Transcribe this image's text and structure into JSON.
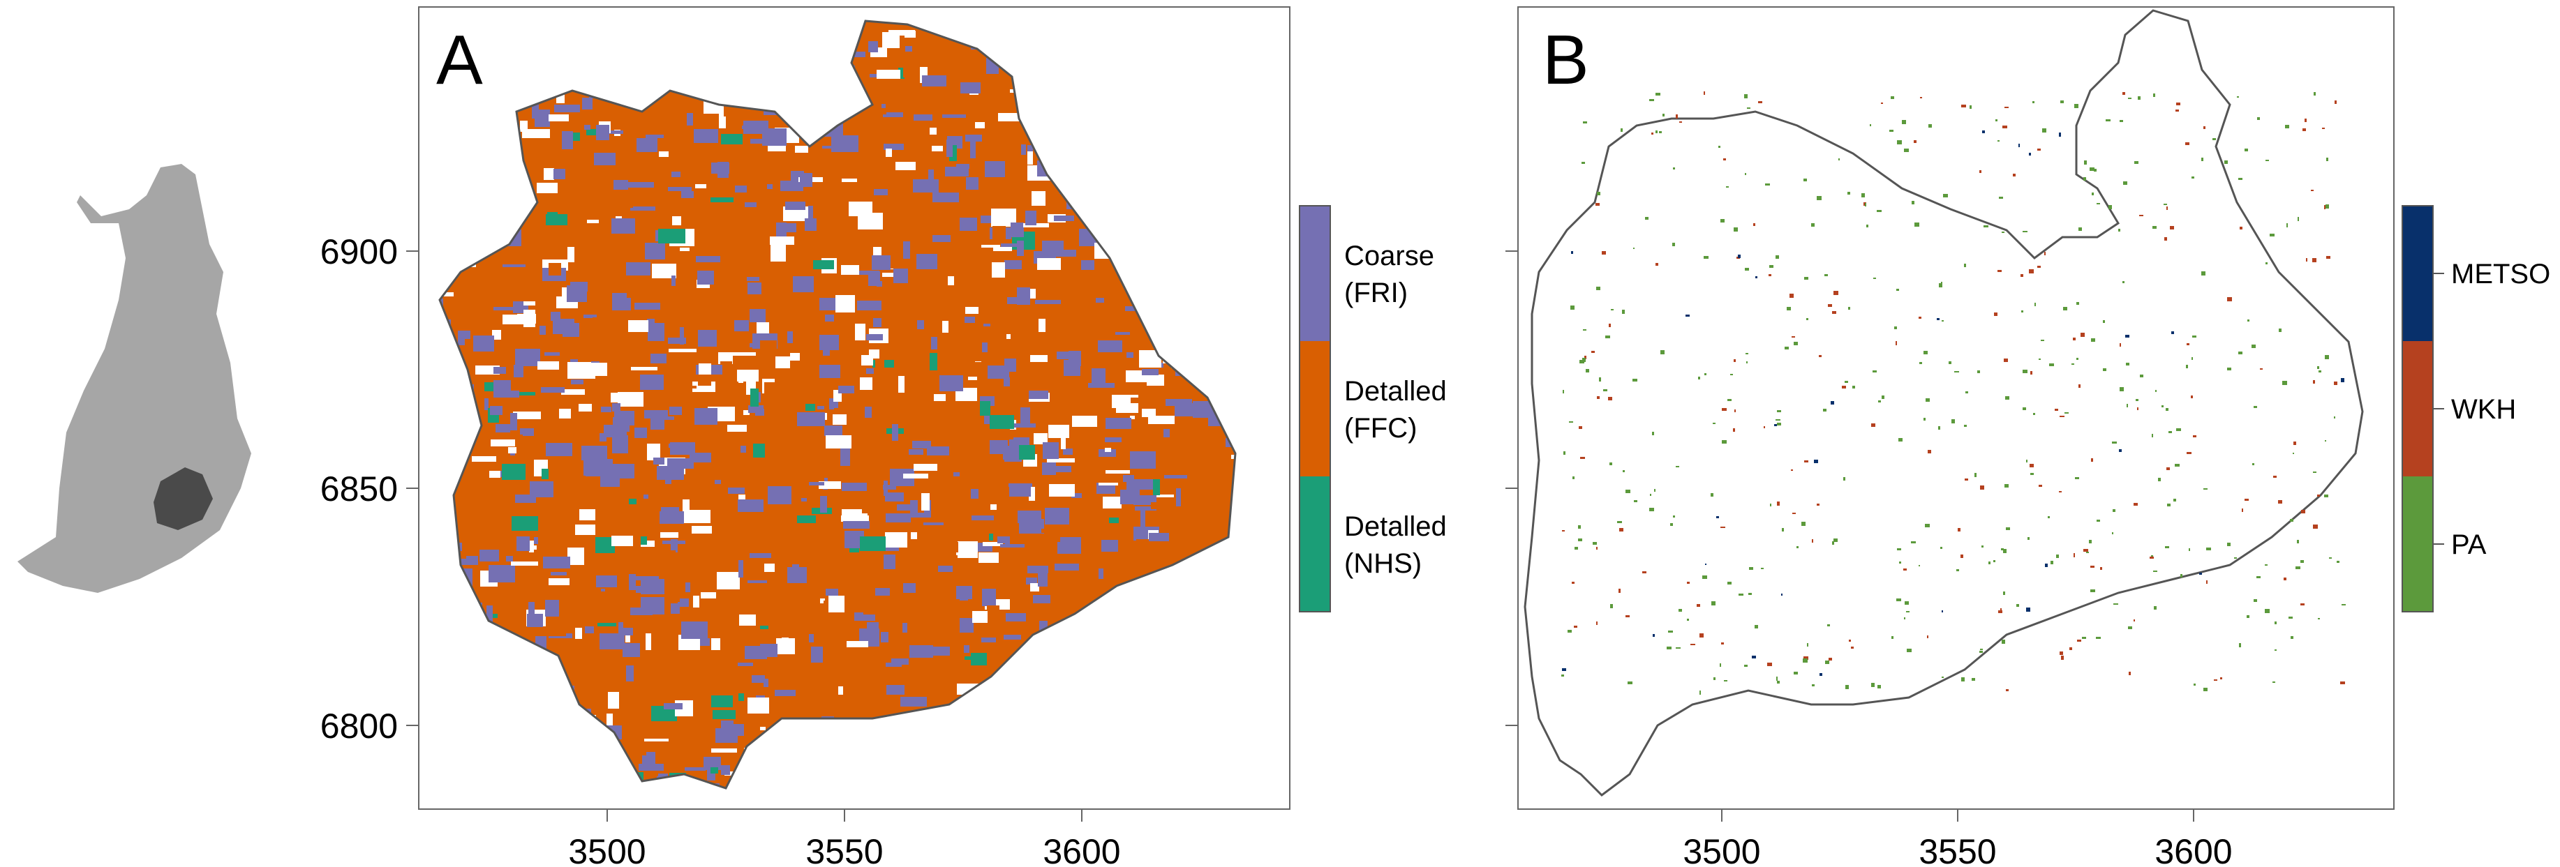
{
  "inset": {
    "label": "Finland locator map"
  },
  "panel_a": {
    "letter": "A",
    "y_ticks": [
      "6800",
      "6850",
      "6900"
    ],
    "x_ticks": [
      "3500",
      "3550",
      "3600"
    ],
    "legend": [
      {
        "line1": "Coarse",
        "line2": "(FRI)",
        "color": "#7570b3"
      },
      {
        "line1": "Detalled",
        "line2": "(FFC)",
        "color": "#d95f02"
      },
      {
        "line1": "Detalled",
        "line2": "(NHS)",
        "color": "#1b9e77"
      }
    ]
  },
  "panel_b": {
    "letter": "B",
    "x_ticks": [
      "3500",
      "3550",
      "3600"
    ],
    "legend": [
      {
        "label": "METSO",
        "color": "#08306b"
      },
      {
        "label": "WKH",
        "color": "#b5411f"
      },
      {
        "label": "PA",
        "color": "#5c9a3c"
      }
    ]
  },
  "colors": {
    "outline": "#666666",
    "finland": "#a6a6a6",
    "study_area": "#4a4a4a"
  }
}
